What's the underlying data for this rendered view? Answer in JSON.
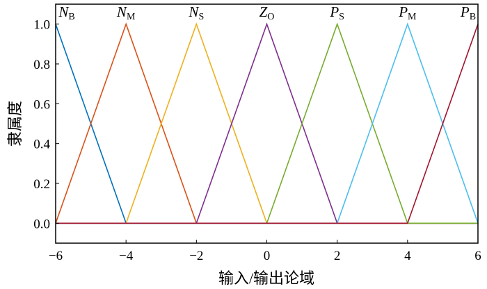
{
  "chart_data": {
    "type": "line",
    "title": "",
    "xlabel": "输入/输出论域",
    "ylabel": "隶属度",
    "xlim": [
      -6,
      6
    ],
    "ylim": [
      -0.1,
      1.1
    ],
    "xticks": [
      "−6",
      "−4",
      "−2",
      "0",
      "2",
      "4",
      "6"
    ],
    "xtick_values": [
      -6,
      -4,
      -2,
      0,
      2,
      4,
      6
    ],
    "yticks": [
      "0.0",
      "0.2",
      "0.4",
      "0.6",
      "0.8",
      "1.0"
    ],
    "ytick_values": [
      0,
      0.2,
      0.4,
      0.6,
      0.8,
      1.0
    ],
    "grid": false,
    "series": [
      {
        "name": "NB",
        "main": "N",
        "subscript": "B",
        "color": "#0072BD",
        "x": [
          -6,
          -4,
          6
        ],
        "y": [
          1,
          0,
          0
        ]
      },
      {
        "name": "NM",
        "main": "N",
        "subscript": "M",
        "color": "#D95319",
        "x": [
          -6,
          -4,
          -2,
          6
        ],
        "y": [
          0,
          1,
          0,
          0
        ]
      },
      {
        "name": "NS",
        "main": "N",
        "subscript": "S",
        "color": "#EDB120",
        "x": [
          -6,
          -4,
          -2,
          0,
          6
        ],
        "y": [
          0,
          0,
          1,
          0,
          0
        ]
      },
      {
        "name": "ZO",
        "main": "Z",
        "subscript": "O",
        "color": "#7E2F8E",
        "x": [
          -6,
          -2,
          0,
          2,
          6
        ],
        "y": [
          0,
          0,
          1,
          0,
          0
        ]
      },
      {
        "name": "PS",
        "main": "P",
        "subscript": "S",
        "color": "#77AC30",
        "x": [
          -6,
          0,
          2,
          4,
          6
        ],
        "y": [
          0,
          0,
          1,
          0,
          0
        ]
      },
      {
        "name": "PM",
        "main": "P",
        "subscript": "M",
        "color": "#4DBEEE",
        "x": [
          -6,
          2,
          4,
          6
        ],
        "y": [
          0,
          0,
          1,
          0
        ]
      },
      {
        "name": "PB",
        "main": "P",
        "subscript": "B",
        "color": "#A2142F",
        "x": [
          -6,
          4,
          6
        ],
        "y": [
          0,
          0,
          1
        ]
      }
    ]
  }
}
